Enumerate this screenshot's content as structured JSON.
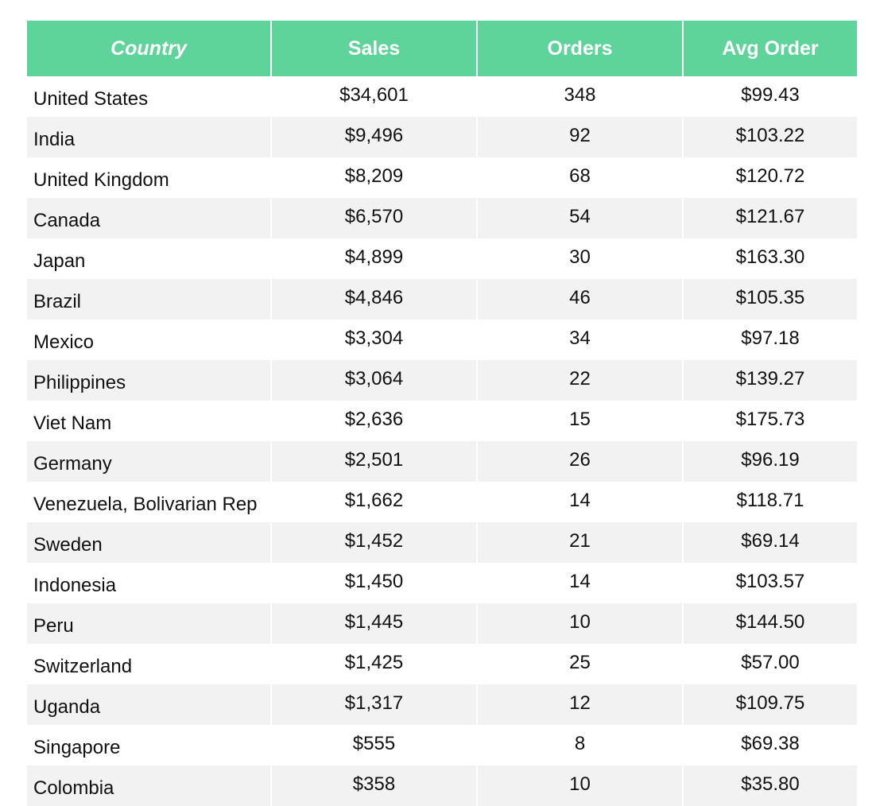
{
  "table": {
    "headers": [
      "Country",
      "Sales",
      "Orders",
      "Avg Order"
    ],
    "rows": [
      {
        "country": "United States",
        "sales": "$34,601",
        "orders": "348",
        "avg_order": "$99.43"
      },
      {
        "country": "India",
        "sales": "$9,496",
        "orders": "92",
        "avg_order": "$103.22"
      },
      {
        "country": "United Kingdom",
        "sales": "$8,209",
        "orders": "68",
        "avg_order": "$120.72"
      },
      {
        "country": "Canada",
        "sales": "$6,570",
        "orders": "54",
        "avg_order": "$121.67"
      },
      {
        "country": "Japan",
        "sales": "$4,899",
        "orders": "30",
        "avg_order": "$163.30"
      },
      {
        "country": "Brazil",
        "sales": "$4,846",
        "orders": "46",
        "avg_order": "$105.35"
      },
      {
        "country": "Mexico",
        "sales": "$3,304",
        "orders": "34",
        "avg_order": "$97.18"
      },
      {
        "country": "Philippines",
        "sales": "$3,064",
        "orders": "22",
        "avg_order": "$139.27"
      },
      {
        "country": "Viet Nam",
        "sales": "$2,636",
        "orders": "15",
        "avg_order": "$175.73"
      },
      {
        "country": "Germany",
        "sales": "$2,501",
        "orders": "26",
        "avg_order": "$96.19"
      },
      {
        "country": "Venezuela, Bolivarian Rep",
        "sales": "$1,662",
        "orders": "14",
        "avg_order": "$118.71"
      },
      {
        "country": "Sweden",
        "sales": "$1,452",
        "orders": "21",
        "avg_order": "$69.14"
      },
      {
        "country": "Indonesia",
        "sales": "$1,450",
        "orders": "14",
        "avg_order": "$103.57"
      },
      {
        "country": "Peru",
        "sales": "$1,445",
        "orders": "10",
        "avg_order": "$144.50"
      },
      {
        "country": "Switzerland",
        "sales": "$1,425",
        "orders": "25",
        "avg_order": "$57.00"
      },
      {
        "country": "Uganda",
        "sales": "$1,317",
        "orders": "12",
        "avg_order": "$109.75"
      },
      {
        "country": "Singapore",
        "sales": "$555",
        "orders": "8",
        "avg_order": "$69.38"
      },
      {
        "country": "Colombia",
        "sales": "$358",
        "orders": "10",
        "avg_order": "$35.80"
      }
    ]
  },
  "colors": {
    "header_bg": "#5fd49a",
    "header_text": "#ffffff",
    "stripe": "#f2f2f2"
  }
}
